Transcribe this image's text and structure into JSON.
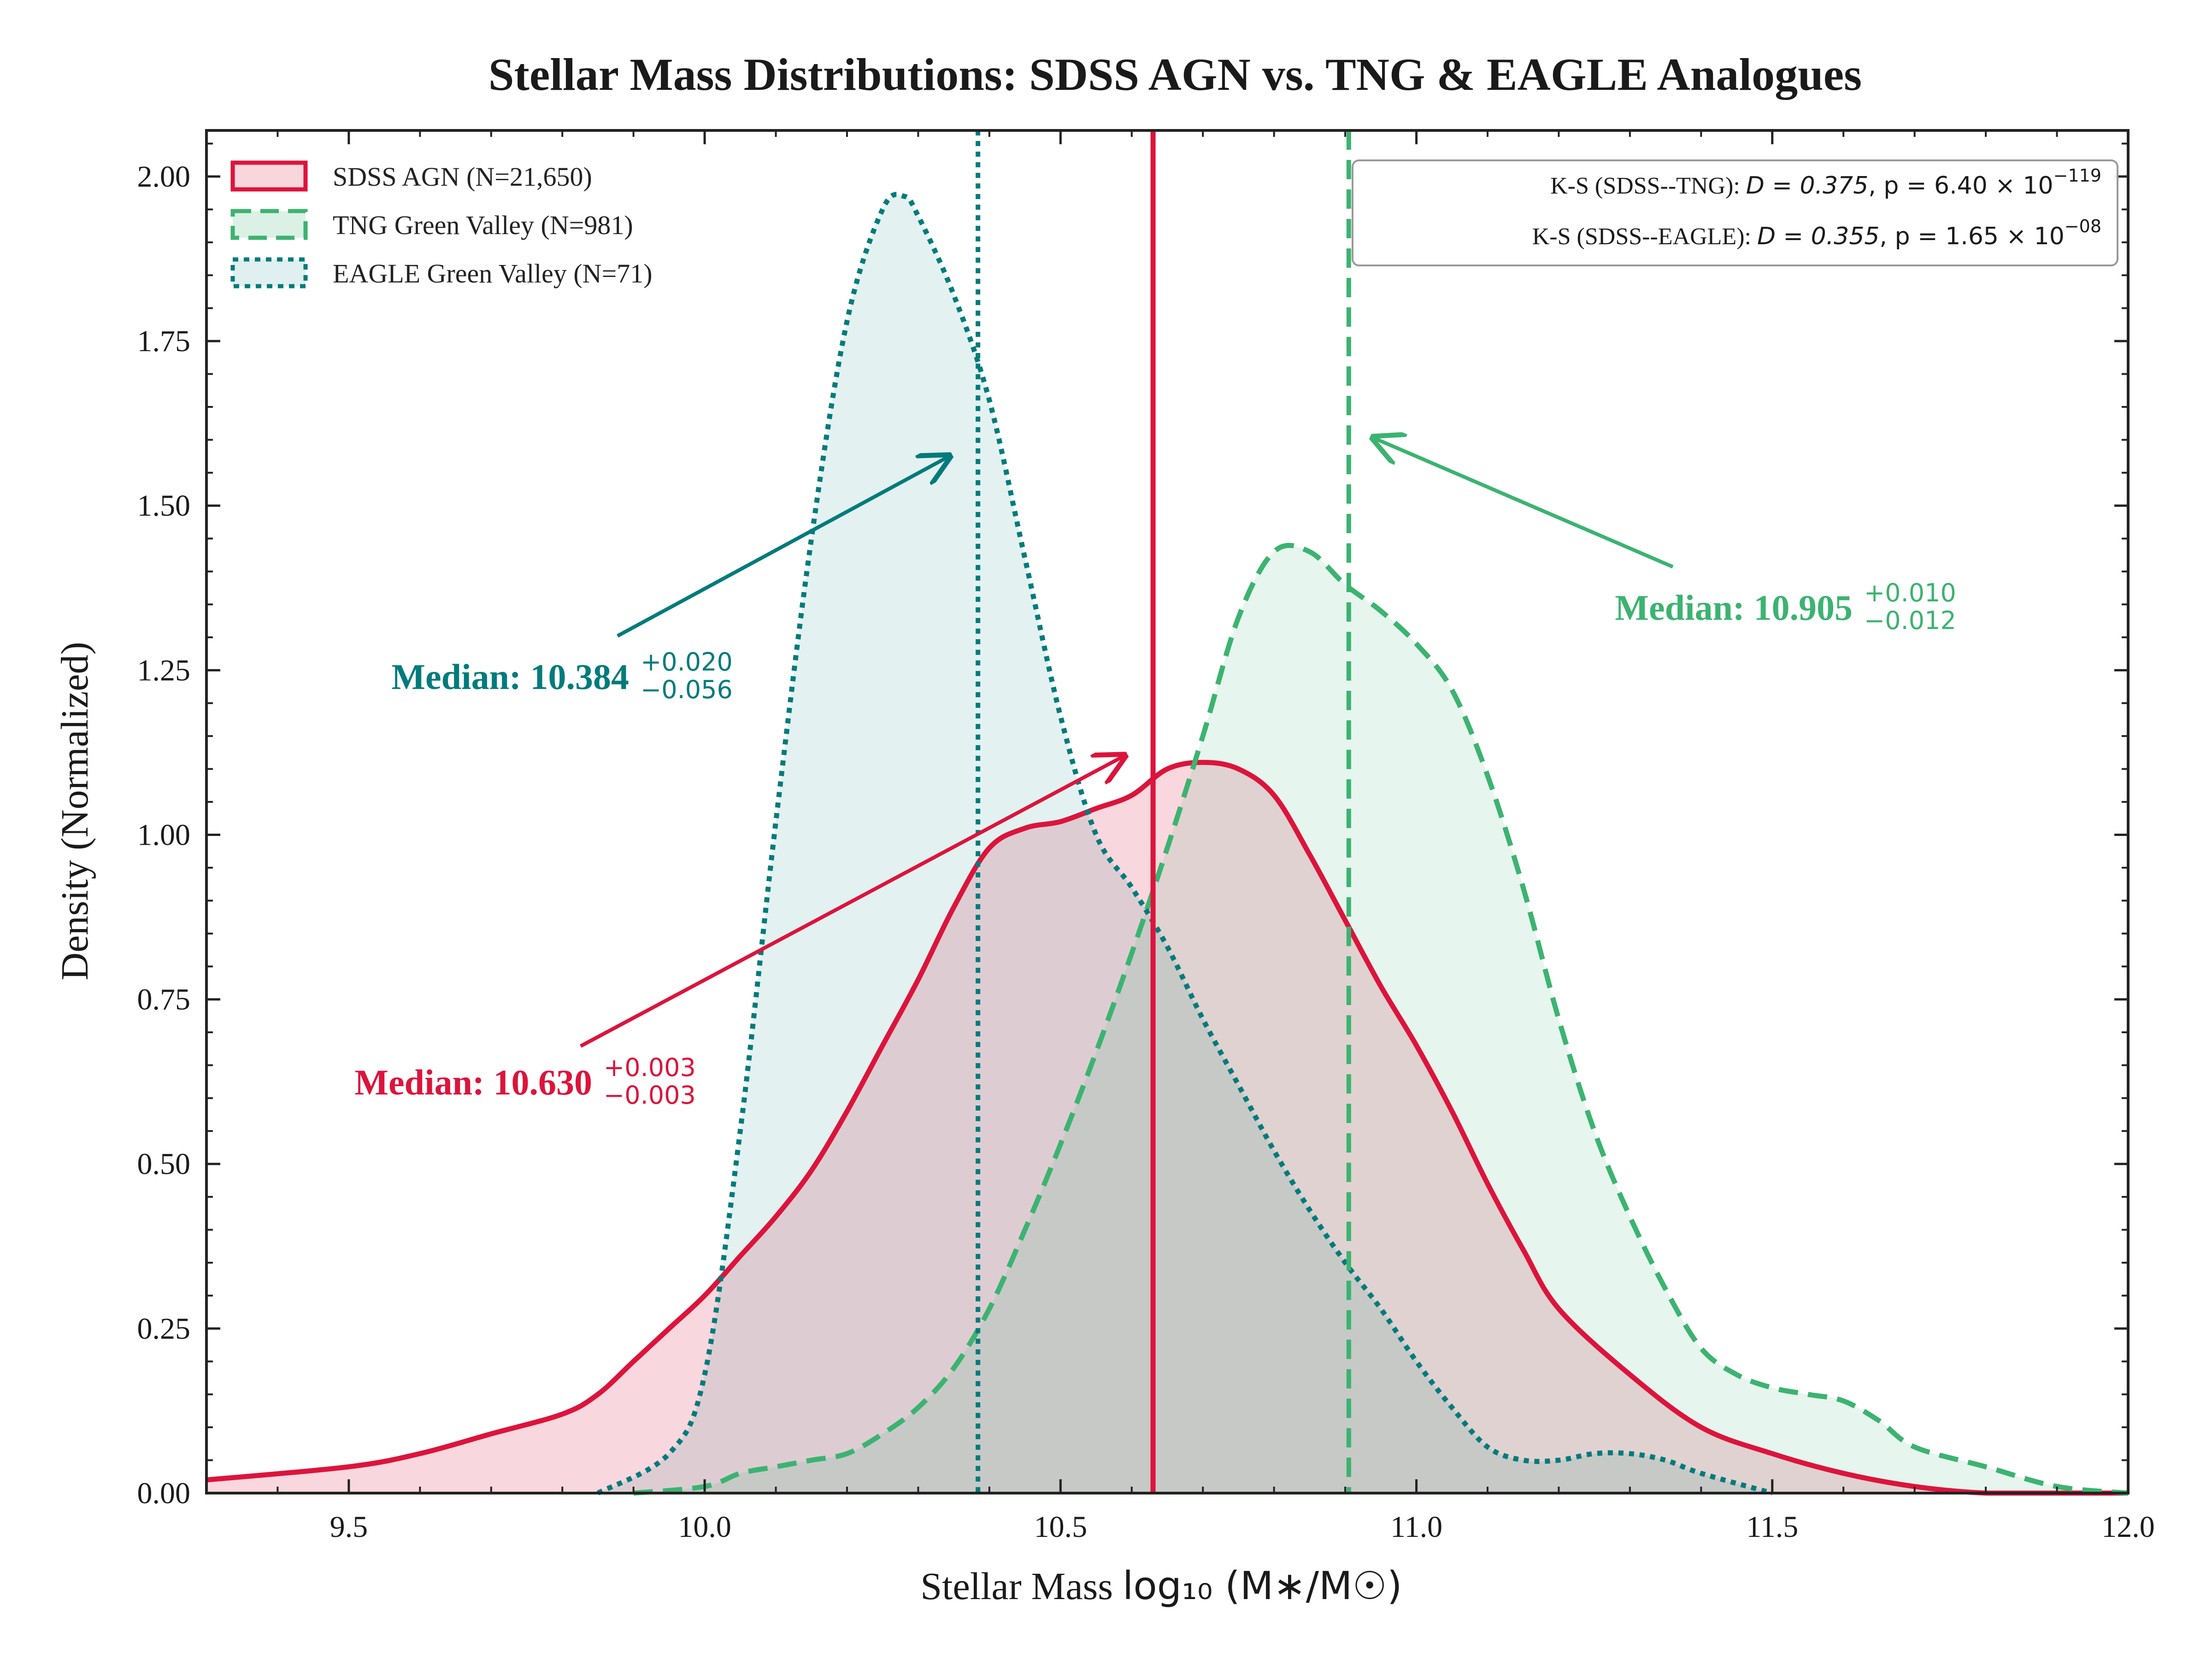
{
  "chart_data": {
    "type": "area",
    "title": "Stellar Mass Distributions: SDSS AGN vs. TNG & EAGLE Analogues",
    "xlabel_prefix": "Stellar Mass ",
    "xlabel_math": "log₁₀ (M∗/M☉)",
    "ylabel": "Density (Normalized)",
    "xlim": [
      9.3,
      12.0
    ],
    "ylim": [
      0.0,
      2.07
    ],
    "x_ticks": [
      "9.5",
      "10.0",
      "10.5",
      "11.0",
      "11.5",
      "12.0"
    ],
    "x_tick_values": [
      9.5,
      10.0,
      10.5,
      11.0,
      11.5,
      12.0
    ],
    "y_ticks": [
      "0.00",
      "0.25",
      "0.50",
      "0.75",
      "1.00",
      "1.25",
      "1.50",
      "1.75",
      "2.00"
    ],
    "y_tick_values": [
      0.0,
      0.25,
      0.5,
      0.75,
      1.0,
      1.25,
      1.5,
      1.75,
      2.0
    ],
    "grid": false,
    "legend_position": "top-left",
    "series": [
      {
        "name": "SDSS AGN (N=21,650)",
        "color": "#DC143C",
        "linestyle": "solid",
        "median": 10.63,
        "median_label": "Median: 10.630",
        "err_plus": "+0.003",
        "err_minus": "−0.003",
        "x": [
          9.3,
          9.5,
          9.6,
          9.7,
          9.8,
          9.85,
          9.9,
          9.95,
          10.0,
          10.05,
          10.1,
          10.15,
          10.2,
          10.25,
          10.3,
          10.35,
          10.4,
          10.45,
          10.5,
          10.55,
          10.6,
          10.65,
          10.7,
          10.75,
          10.8,
          10.85,
          10.9,
          10.95,
          11.0,
          11.05,
          11.1,
          11.15,
          11.2,
          11.3,
          11.4,
          11.5,
          11.6,
          11.7,
          11.8,
          11.9,
          12.0
        ],
        "y": [
          0.02,
          0.04,
          0.06,
          0.09,
          0.12,
          0.15,
          0.2,
          0.25,
          0.3,
          0.36,
          0.42,
          0.49,
          0.58,
          0.68,
          0.78,
          0.89,
          0.98,
          1.01,
          1.02,
          1.04,
          1.06,
          1.1,
          1.11,
          1.1,
          1.06,
          0.97,
          0.87,
          0.77,
          0.68,
          0.58,
          0.47,
          0.37,
          0.28,
          0.18,
          0.1,
          0.06,
          0.03,
          0.01,
          0.0,
          0.0,
          0.0
        ]
      },
      {
        "name": "TNG Green Valley (N=981)",
        "color": "#3CB371",
        "linestyle": "dashed",
        "median": 10.905,
        "median_label": "Median: 10.905",
        "err_plus": "+0.010",
        "err_minus": "−0.012",
        "x": [
          9.9,
          10.0,
          10.05,
          10.1,
          10.15,
          10.2,
          10.25,
          10.3,
          10.35,
          10.4,
          10.45,
          10.5,
          10.55,
          10.6,
          10.65,
          10.7,
          10.75,
          10.8,
          10.85,
          10.9,
          10.95,
          11.0,
          11.05,
          11.1,
          11.15,
          11.2,
          11.25,
          11.3,
          11.35,
          11.4,
          11.45,
          11.5,
          11.55,
          11.6,
          11.65,
          11.7,
          11.8,
          11.9,
          12.0
        ],
        "y": [
          0.0,
          0.01,
          0.03,
          0.04,
          0.05,
          0.06,
          0.09,
          0.13,
          0.19,
          0.28,
          0.4,
          0.53,
          0.67,
          0.82,
          0.98,
          1.15,
          1.33,
          1.43,
          1.43,
          1.38,
          1.34,
          1.29,
          1.22,
          1.09,
          0.92,
          0.72,
          0.55,
          0.42,
          0.31,
          0.22,
          0.18,
          0.16,
          0.15,
          0.14,
          0.11,
          0.07,
          0.04,
          0.01,
          0.0
        ]
      },
      {
        "name": "EAGLE Green Valley (N=71)",
        "color": "#007B7B",
        "linestyle": "dotted",
        "median": 10.384,
        "median_label": "Median: 10.384",
        "err_plus": "+0.020",
        "err_minus": "−0.056",
        "x": [
          9.85,
          9.95,
          10.0,
          10.05,
          10.1,
          10.15,
          10.2,
          10.25,
          10.28,
          10.3,
          10.35,
          10.4,
          10.45,
          10.5,
          10.55,
          10.6,
          10.65,
          10.7,
          10.75,
          10.8,
          10.85,
          10.9,
          10.95,
          11.0,
          11.05,
          11.1,
          11.15,
          11.2,
          11.25,
          11.3,
          11.35,
          11.4,
          11.5
        ],
        "y": [
          0.0,
          0.06,
          0.18,
          0.55,
          1.02,
          1.45,
          1.78,
          1.95,
          1.97,
          1.94,
          1.82,
          1.66,
          1.42,
          1.18,
          1.0,
          0.92,
          0.83,
          0.72,
          0.62,
          0.52,
          0.43,
          0.35,
          0.28,
          0.2,
          0.13,
          0.07,
          0.05,
          0.05,
          0.06,
          0.06,
          0.05,
          0.03,
          0.0
        ]
      }
    ],
    "ks_tests": [
      {
        "label": "K-S (SDSS--TNG): ",
        "stat": "D = 0.375",
        "p_mantissa": ", p = 6.40 × 10",
        "p_exp": "−119"
      },
      {
        "label": "K-S (SDSS--EAGLE): ",
        "stat": "D = 0.355",
        "p_mantissa": ", p = 1.65 × 10",
        "p_exp": "−08"
      }
    ]
  }
}
